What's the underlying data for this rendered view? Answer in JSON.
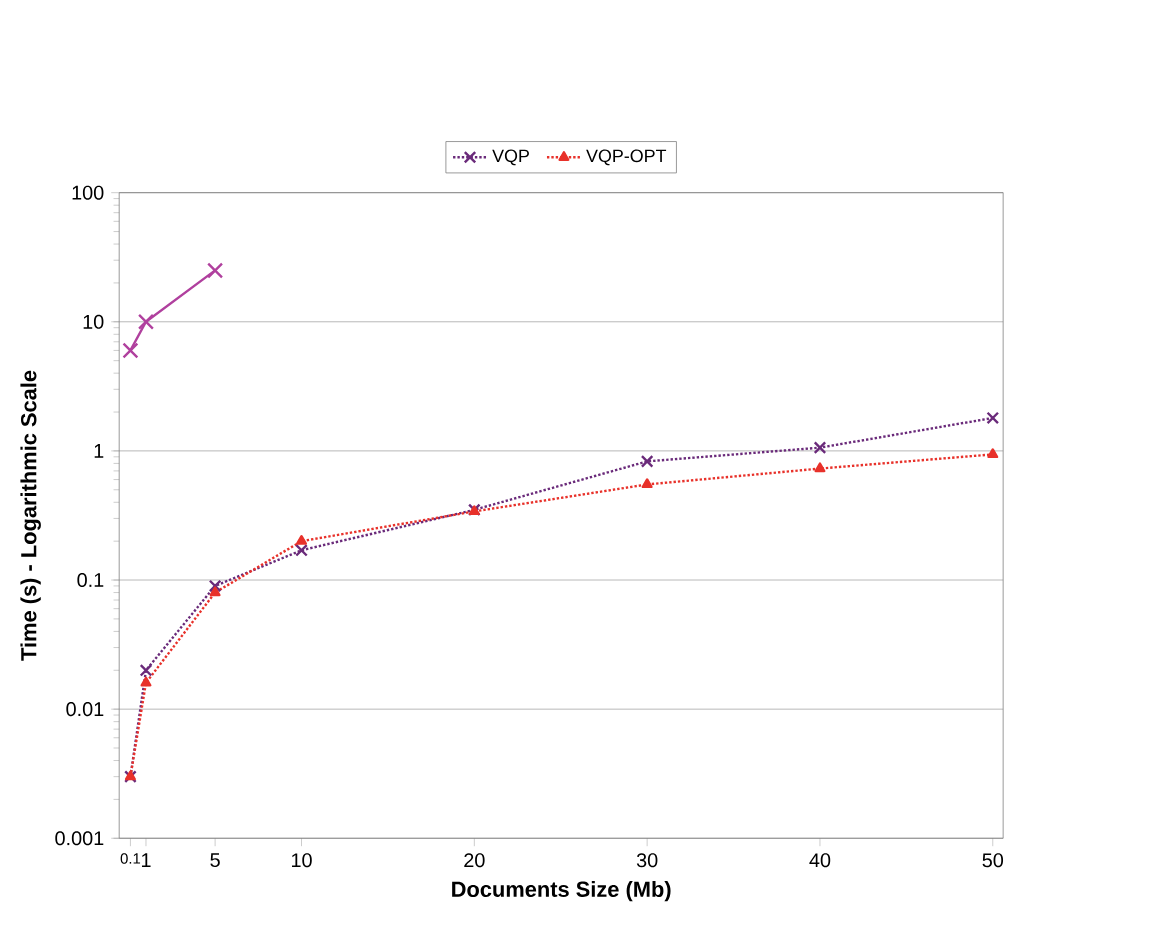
{
  "chart_data": {
    "type": "line",
    "xlabel": "Documents Size (Mb)",
    "ylabel": "Time (s) - Logarithmic Scale",
    "log": "y",
    "grid": "y",
    "legend": "top",
    "xlim": [
      -0.55,
      50.6
    ],
    "xticks": [
      0.1,
      1,
      5,
      10,
      20,
      30,
      40,
      50
    ],
    "ylim": [
      0.001,
      100
    ],
    "yticks": [
      0.001,
      0.01,
      0.1,
      1,
      10,
      100
    ],
    "series": [
      {
        "color": "#b0409e",
        "marker": "cross",
        "line_style": "solid",
        "x": [
          0.1,
          1,
          5
        ],
        "values": [
          6,
          10,
          25
        ]
      },
      {
        "name": "VQP",
        "color": "#6a2a7a",
        "marker": "cross",
        "line_style": "dotted",
        "x": [
          0.1,
          1,
          5,
          10,
          20,
          30,
          40,
          50
        ],
        "values": [
          0.003,
          0.02,
          0.09,
          0.17,
          0.35,
          0.83,
          1.06,
          1.8
        ]
      },
      {
        "name": "VQP-OPT",
        "color": "#e8312a",
        "marker": "triangle",
        "line_style": "dotted",
        "x": [
          0.1,
          1,
          5,
          10,
          20,
          30,
          40,
          50
        ],
        "values": [
          0.003,
          0.016,
          0.08,
          0.2,
          0.34,
          0.55,
          0.73,
          0.94
        ]
      }
    ]
  }
}
